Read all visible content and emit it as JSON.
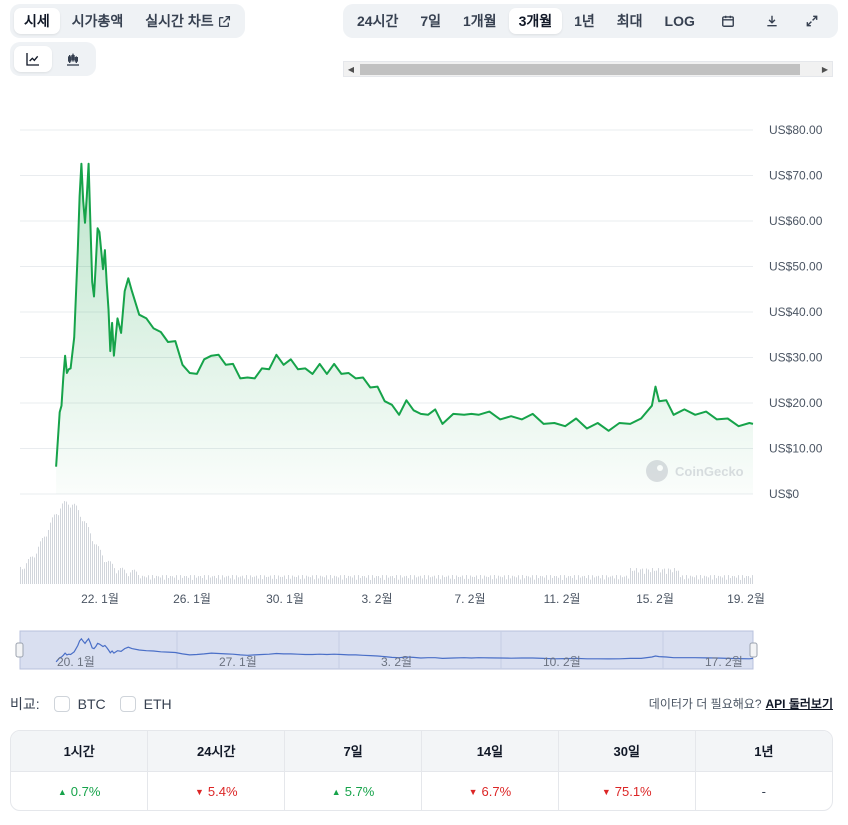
{
  "tabs": [
    {
      "label": "시세",
      "active": true
    },
    {
      "label": "시가총액",
      "active": false
    },
    {
      "label": "실시간 차트",
      "active": false,
      "icon": "external-link-icon"
    }
  ],
  "chart_type_buttons": [
    {
      "icon": "line-chart-icon",
      "active": true
    },
    {
      "icon": "candlestick-icon",
      "active": false
    }
  ],
  "ranges": [
    {
      "label": "24시간",
      "active": false
    },
    {
      "label": "7일",
      "active": false
    },
    {
      "label": "1개월",
      "active": false
    },
    {
      "label": "3개월",
      "active": true
    },
    {
      "label": "1년",
      "active": false
    },
    {
      "label": "최대",
      "active": false
    },
    {
      "label": "LOG",
      "active": false
    }
  ],
  "toolbar_icons": [
    "calendar-icon",
    "download-icon",
    "expand-icon"
  ],
  "watermark": "CoinGecko",
  "colors": {
    "line": "#16a34a",
    "navigator_line": "#4a6fc7",
    "navigator_fill": "#d9dff0",
    "up": "#16a34a",
    "down": "#dc2626"
  },
  "chart_data": {
    "type": "area",
    "y_axis": {
      "ticks": [
        "US$80.00",
        "US$70.00",
        "US$60.00",
        "US$50.00",
        "US$40.00",
        "US$30.00",
        "US$20.00",
        "US$10.00",
        "US$0"
      ],
      "min": 0,
      "max": 80
    },
    "x_ticks": [
      "22. 1월",
      "26. 1월",
      "30. 1월",
      "3. 2월",
      "7. 2월",
      "11. 2월",
      "15. 2월",
      "19. 2월"
    ],
    "navigator_ticks": [
      "20. 1월",
      "27. 1월",
      "3. 2월",
      "10. 2월",
      "17. 2월"
    ],
    "grid": true,
    "series": [
      {
        "values": [
          [
            0,
            6
          ],
          [
            0.05,
            12
          ],
          [
            0.1,
            18
          ],
          [
            0.15,
            20
          ],
          [
            0.2,
            25
          ],
          [
            0.25,
            31
          ],
          [
            0.3,
            26
          ],
          [
            0.35,
            28
          ],
          [
            0.4,
            27
          ],
          [
            0.5,
            35
          ],
          [
            0.6,
            53
          ],
          [
            0.65,
            66
          ],
          [
            0.7,
            72
          ],
          [
            0.75,
            65
          ],
          [
            0.8,
            59
          ],
          [
            0.85,
            66
          ],
          [
            0.9,
            72
          ],
          [
            0.95,
            60
          ],
          [
            1.0,
            46
          ],
          [
            1.05,
            44
          ],
          [
            1.1,
            50
          ],
          [
            1.15,
            59
          ],
          [
            1.2,
            57
          ],
          [
            1.3,
            50
          ],
          [
            1.35,
            53
          ],
          [
            1.4,
            47
          ],
          [
            1.45,
            40
          ],
          [
            1.5,
            32
          ],
          [
            1.55,
            37
          ],
          [
            1.6,
            31
          ],
          [
            1.7,
            38
          ],
          [
            1.8,
            36
          ],
          [
            1.9,
            44
          ],
          [
            2.0,
            48
          ],
          [
            2.1,
            44
          ],
          [
            2.3,
            40
          ],
          [
            2.5,
            38
          ],
          [
            2.7,
            37
          ],
          [
            2.9,
            35
          ],
          [
            3.1,
            34
          ],
          [
            3.3,
            33
          ],
          [
            3.5,
            29
          ],
          [
            3.7,
            26
          ],
          [
            3.9,
            27
          ],
          [
            4.1,
            29
          ],
          [
            4.3,
            31
          ],
          [
            4.5,
            30
          ],
          [
            4.7,
            29
          ],
          [
            4.9,
            28
          ],
          [
            5.1,
            26
          ],
          [
            5.3,
            25
          ],
          [
            5.5,
            26
          ],
          [
            5.7,
            27
          ],
          [
            5.9,
            28
          ],
          [
            6.1,
            30
          ],
          [
            6.3,
            29
          ],
          [
            6.5,
            29
          ],
          [
            6.7,
            28
          ],
          [
            6.9,
            27
          ],
          [
            7.1,
            27
          ],
          [
            7.3,
            28
          ],
          [
            7.5,
            27
          ],
          [
            7.7,
            28
          ],
          [
            7.9,
            27
          ],
          [
            8.1,
            26
          ],
          [
            8.3,
            26
          ],
          [
            8.5,
            25
          ],
          [
            8.7,
            24
          ],
          [
            8.9,
            23
          ],
          [
            9.1,
            21
          ],
          [
            9.3,
            19
          ],
          [
            9.5,
            18
          ],
          [
            9.7,
            20
          ],
          [
            9.9,
            19
          ],
          [
            10.1,
            17
          ],
          [
            10.3,
            18
          ],
          [
            10.5,
            18
          ],
          [
            10.7,
            16
          ],
          [
            11.0,
            17
          ],
          [
            11.3,
            18
          ],
          [
            11.5,
            17
          ],
          [
            11.7,
            18
          ],
          [
            12.0,
            17.5
          ],
          [
            12.3,
            17
          ],
          [
            12.6,
            16.5
          ],
          [
            12.9,
            17
          ],
          [
            13.2,
            17
          ],
          [
            13.5,
            16
          ],
          [
            13.8,
            15
          ],
          [
            14.1,
            15.5
          ],
          [
            14.4,
            16
          ],
          [
            14.7,
            15
          ],
          [
            15.0,
            15
          ],
          [
            15.3,
            14.5
          ],
          [
            15.6,
            15
          ],
          [
            15.9,
            16
          ],
          [
            16.2,
            16
          ],
          [
            16.5,
            20
          ],
          [
            16.6,
            23
          ],
          [
            16.7,
            21
          ],
          [
            16.9,
            20
          ],
          [
            17.1,
            18
          ],
          [
            17.4,
            18
          ],
          [
            17.7,
            18
          ],
          [
            18.0,
            17.5
          ],
          [
            18.3,
            17
          ],
          [
            18.6,
            16
          ],
          [
            18.9,
            15.5
          ],
          [
            19.2,
            15
          ],
          [
            19.3,
            16
          ]
        ]
      }
    ],
    "x_domain": [
      -1.0,
      19.3
    ],
    "x_tick_positions": [
      1.2,
      4.9,
      8.6,
      12.4,
      16.1,
      19.8,
      23.5,
      27.1
    ]
  },
  "compare": {
    "label": "비교:",
    "options": [
      "BTC",
      "ETH"
    ]
  },
  "api_more": {
    "text": "데이터가 더 필요해요?",
    "link": "API 둘러보기"
  },
  "performance": {
    "headers": [
      "1시간",
      "24시간",
      "7일",
      "14일",
      "30일",
      "1년"
    ],
    "values": [
      {
        "text": "0.7%",
        "dir": "up"
      },
      {
        "text": "5.4%",
        "dir": "down"
      },
      {
        "text": "5.7%",
        "dir": "up"
      },
      {
        "text": "6.7%",
        "dir": "down"
      },
      {
        "text": "75.1%",
        "dir": "down"
      },
      {
        "text": "-",
        "dir": "none"
      }
    ]
  }
}
